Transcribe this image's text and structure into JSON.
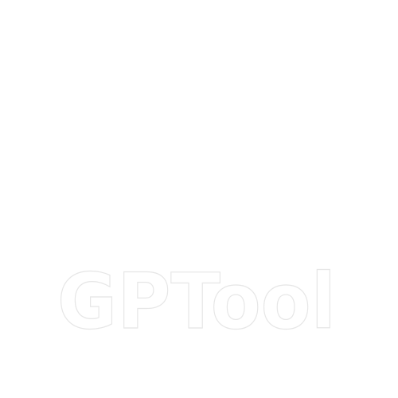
{
  "logo": {
    "wordmark": "GPTool",
    "fill_color": "#ffffff",
    "outline_color": "#e6e6e6"
  },
  "background_color": "#ffffff"
}
